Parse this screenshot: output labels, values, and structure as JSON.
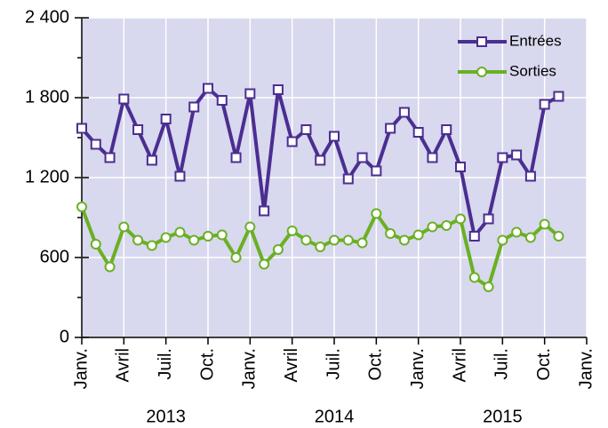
{
  "chart_data": {
    "type": "line",
    "x": [
      "2013-01",
      "2013-02",
      "2013-03",
      "2013-04",
      "2013-05",
      "2013-06",
      "2013-07",
      "2013-08",
      "2013-09",
      "2013-10",
      "2013-11",
      "2013-12",
      "2014-01",
      "2014-02",
      "2014-03",
      "2014-04",
      "2014-05",
      "2014-06",
      "2014-07",
      "2014-08",
      "2014-09",
      "2014-10",
      "2014-11",
      "2014-12",
      "2015-01",
      "2015-02",
      "2015-03",
      "2015-04",
      "2015-05",
      "2015-06",
      "2015-07",
      "2015-08",
      "2015-09",
      "2015-10",
      "2015-11"
    ],
    "series": [
      {
        "name": "Entrées",
        "color": "#4b2e91",
        "marker": "square",
        "values": [
          1570,
          1450,
          1350,
          1790,
          1560,
          1330,
          1640,
          1210,
          1730,
          1870,
          1780,
          1350,
          1830,
          950,
          1860,
          1470,
          1560,
          1330,
          1510,
          1190,
          1350,
          1250,
          1570,
          1690,
          1540,
          1350,
          1560,
          1280,
          760,
          890,
          1350,
          1370,
          1210,
          1750,
          1810
        ]
      },
      {
        "name": "Sorties",
        "color": "#6ab023",
        "marker": "circle",
        "values": [
          980,
          700,
          530,
          830,
          730,
          690,
          750,
          790,
          730,
          760,
          770,
          600,
          830,
          550,
          660,
          800,
          730,
          680,
          730,
          730,
          710,
          930,
          780,
          730,
          770,
          830,
          840,
          890,
          450,
          380,
          730,
          790,
          750,
          850,
          760
        ]
      }
    ],
    "xlim": [
      "2013-01",
      "2016-01"
    ],
    "xticks": [
      {
        "value": "2013-01",
        "label": "Janv."
      },
      {
        "value": "2013-04",
        "label": "Avril"
      },
      {
        "value": "2013-07",
        "label": "Juil."
      },
      {
        "value": "2013-10",
        "label": "Oct."
      },
      {
        "value": "2014-01",
        "label": "Janv."
      },
      {
        "value": "2014-04",
        "label": "Avril"
      },
      {
        "value": "2014-07",
        "label": "Juil."
      },
      {
        "value": "2014-10",
        "label": "Oct."
      },
      {
        "value": "2015-01",
        "label": "Janv."
      },
      {
        "value": "2015-04",
        "label": "Avril"
      },
      {
        "value": "2015-07",
        "label": "Juil."
      },
      {
        "value": "2015-10",
        "label": "Oct."
      },
      {
        "value": "2016-01",
        "label": "Janv."
      }
    ],
    "year_labels": [
      "2013",
      "2014",
      "2015"
    ],
    "ylim": [
      0,
      2400
    ],
    "yticks": [
      0,
      600,
      {
        "value": 1200,
        "label": "1 200"
      },
      {
        "value": 1800,
        "label": "1 800"
      },
      {
        "value": 2400,
        "label": "2 400"
      }
    ],
    "yminorticks": [
      300,
      900,
      1500,
      2100
    ],
    "grid": true,
    "legend": "top-right"
  }
}
